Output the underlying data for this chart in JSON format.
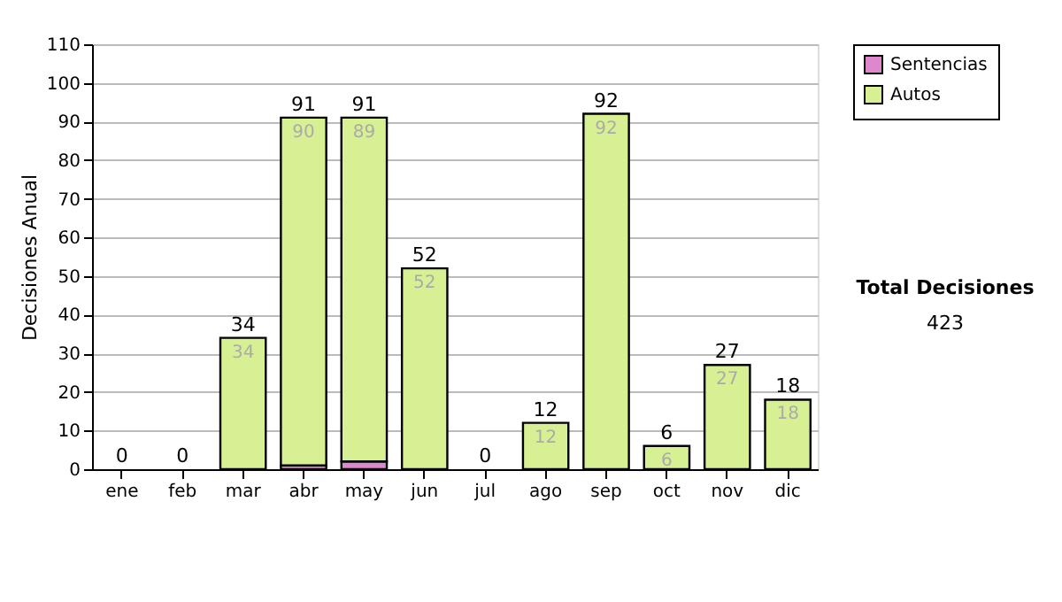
{
  "chart_data": {
    "type": "bar",
    "stacked": true,
    "ylabel": "Decisiones Anual",
    "categories": [
      "ene",
      "feb",
      "mar",
      "abr",
      "may",
      "jun",
      "jul",
      "ago",
      "sep",
      "oct",
      "nov",
      "dic"
    ],
    "series": [
      {
        "name": "Sentencias",
        "color": "#dd88cc",
        "values": [
          0,
          0,
          0,
          1,
          2,
          0,
          0,
          0,
          0,
          0,
          0,
          0
        ]
      },
      {
        "name": "Autos",
        "color": "#d8f094",
        "values": [
          0,
          0,
          34,
          90,
          89,
          52,
          0,
          12,
          92,
          6,
          27,
          18
        ],
        "value_labels": [
          null,
          null,
          "34",
          "90",
          "89",
          "52",
          null,
          "12",
          "92",
          "6",
          "27",
          "18"
        ]
      }
    ],
    "totals": [
      "0",
      "0",
      "34",
      "91",
      "91",
      "52",
      "0",
      "12",
      "92",
      "6",
      "27",
      "18"
    ],
    "ylim": [
      0,
      110
    ],
    "yticks": [
      0,
      10,
      20,
      30,
      40,
      50,
      60,
      70,
      80,
      90,
      100,
      110
    ],
    "grid": "y",
    "legend": "right",
    "annotations": [
      "Total Decisiones",
      "423"
    ]
  }
}
